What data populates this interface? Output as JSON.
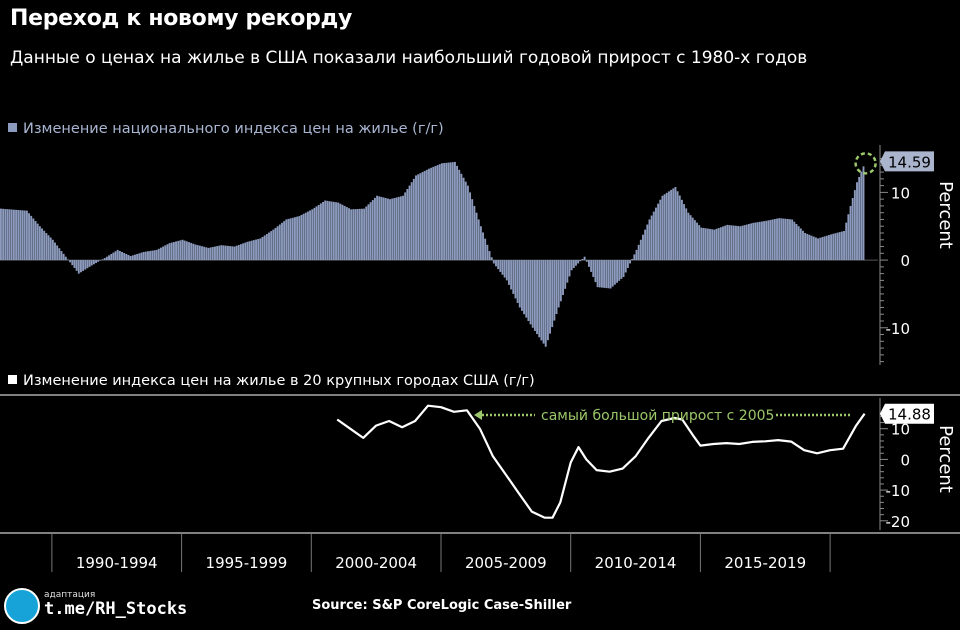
{
  "header": {
    "title": "Переход к новому рекорду",
    "subtitle": "Данные о ценах на жилье в США показали наибольший годовой прирост с 1980-х годов"
  },
  "colors": {
    "background": "#000000",
    "bars": "#8c9bbd",
    "line": "#ffffff",
    "annotation": "#9bc66a",
    "axis": "#8a8a8a"
  },
  "chart_data": [
    {
      "type": "bar",
      "legend": "Изменение национального индекса цен на жилье (г/г)",
      "ylabel": "Percent",
      "ylim": [
        -15.5,
        17
      ],
      "yticks": [
        10,
        0,
        -10
      ],
      "last_value_label": "14.59",
      "x_start": 1988.0,
      "x_end": 2021.33,
      "anchors": [
        [
          1988.0,
          7.6
        ],
        [
          1989.0,
          7.3
        ],
        [
          1989.5,
          5.0
        ],
        [
          1990.0,
          3.0
        ],
        [
          1990.5,
          0.5
        ],
        [
          1991.0,
          -2.0
        ],
        [
          1991.5,
          -0.8
        ],
        [
          1992.0,
          0.3
        ],
        [
          1992.5,
          1.5
        ],
        [
          1993.0,
          0.6
        ],
        [
          1993.5,
          1.2
        ],
        [
          1994.0,
          1.5
        ],
        [
          1994.5,
          2.5
        ],
        [
          1995.0,
          3.0
        ],
        [
          1995.5,
          2.3
        ],
        [
          1996.0,
          1.8
        ],
        [
          1996.5,
          2.2
        ],
        [
          1997.0,
          2.0
        ],
        [
          1997.5,
          2.7
        ],
        [
          1998.0,
          3.2
        ],
        [
          1998.5,
          4.5
        ],
        [
          1999.0,
          6.0
        ],
        [
          1999.5,
          6.5
        ],
        [
          2000.0,
          7.5
        ],
        [
          2000.5,
          8.8
        ],
        [
          2001.0,
          8.5
        ],
        [
          2001.5,
          7.5
        ],
        [
          2002.0,
          7.6
        ],
        [
          2002.5,
          9.5
        ],
        [
          2003.0,
          9.0
        ],
        [
          2003.5,
          9.5
        ],
        [
          2004.0,
          12.5
        ],
        [
          2004.5,
          13.5
        ],
        [
          2005.0,
          14.3
        ],
        [
          2005.5,
          14.5
        ],
        [
          2006.0,
          11.0
        ],
        [
          2006.5,
          5.0
        ],
        [
          2007.0,
          -0.5
        ],
        [
          2007.5,
          -3.0
        ],
        [
          2008.0,
          -7.0
        ],
        [
          2008.5,
          -10.0
        ],
        [
          2009.0,
          -12.8
        ],
        [
          2009.5,
          -7.0
        ],
        [
          2010.0,
          -1.5
        ],
        [
          2010.5,
          0.5
        ],
        [
          2011.0,
          -4.0
        ],
        [
          2011.5,
          -4.2
        ],
        [
          2012.0,
          -2.5
        ],
        [
          2012.5,
          1.5
        ],
        [
          2013.0,
          6.0
        ],
        [
          2013.5,
          9.5
        ],
        [
          2014.0,
          10.8
        ],
        [
          2014.5,
          7.0
        ],
        [
          2015.0,
          4.8
        ],
        [
          2015.5,
          4.5
        ],
        [
          2016.0,
          5.2
        ],
        [
          2016.5,
          5.0
        ],
        [
          2017.0,
          5.5
        ],
        [
          2017.5,
          5.8
        ],
        [
          2018.0,
          6.2
        ],
        [
          2018.5,
          6.0
        ],
        [
          2019.0,
          4.0
        ],
        [
          2019.5,
          3.2
        ],
        [
          2020.0,
          3.8
        ],
        [
          2020.5,
          4.3
        ],
        [
          2020.75,
          8.0
        ],
        [
          2021.0,
          11.5
        ],
        [
          2021.33,
          14.59
        ]
      ]
    },
    {
      "type": "line",
      "legend": "Изменение индекса цен на жилье в 20 крупных городах США (г/г)",
      "ylabel": "Percent",
      "ylim": [
        -23,
        20
      ],
      "yticks": [
        10,
        0,
        -10,
        -20
      ],
      "last_value_label": "14.88",
      "annotation": "самый большой прирост с 2005",
      "points": [
        [
          2001.0,
          13.0
        ],
        [
          2001.5,
          10.0
        ],
        [
          2002.0,
          7.0
        ],
        [
          2002.5,
          11.0
        ],
        [
          2003.0,
          12.5
        ],
        [
          2003.5,
          10.5
        ],
        [
          2004.0,
          12.5
        ],
        [
          2004.5,
          17.5
        ],
        [
          2005.0,
          17.0
        ],
        [
          2005.5,
          15.5
        ],
        [
          2006.0,
          16.0
        ],
        [
          2006.5,
          10.0
        ],
        [
          2007.0,
          1.0
        ],
        [
          2007.5,
          -5.0
        ],
        [
          2008.0,
          -11.0
        ],
        [
          2008.5,
          -17.0
        ],
        [
          2009.0,
          -19.0
        ],
        [
          2009.3,
          -19.0
        ],
        [
          2009.6,
          -14.0
        ],
        [
          2010.0,
          -1.0
        ],
        [
          2010.3,
          4.0
        ],
        [
          2010.6,
          0.0
        ],
        [
          2011.0,
          -3.5
        ],
        [
          2011.5,
          -4.0
        ],
        [
          2012.0,
          -3.0
        ],
        [
          2012.5,
          1.0
        ],
        [
          2013.0,
          7.0
        ],
        [
          2013.5,
          12.5
        ],
        [
          2014.0,
          13.5
        ],
        [
          2014.3,
          13.0
        ],
        [
          2014.7,
          8.0
        ],
        [
          2015.0,
          4.5
        ],
        [
          2015.5,
          5.0
        ],
        [
          2016.0,
          5.3
        ],
        [
          2016.5,
          5.0
        ],
        [
          2017.0,
          5.7
        ],
        [
          2017.5,
          5.9
        ],
        [
          2018.0,
          6.3
        ],
        [
          2018.5,
          5.8
        ],
        [
          2019.0,
          3.0
        ],
        [
          2019.5,
          2.0
        ],
        [
          2020.0,
          3.0
        ],
        [
          2020.5,
          3.5
        ],
        [
          2020.8,
          8.0
        ],
        [
          2021.0,
          11.0
        ],
        [
          2021.33,
          14.88
        ]
      ]
    }
  ],
  "x_axis": {
    "range": [
      1988.0,
      2022.0
    ],
    "groups": [
      {
        "label": "1990-1994",
        "from": 1990,
        "to": 1995
      },
      {
        "label": "1995-1999",
        "from": 1995,
        "to": 2000
      },
      {
        "label": "2000-2004",
        "from": 2000,
        "to": 2005
      },
      {
        "label": "2005-2009",
        "from": 2005,
        "to": 2010
      },
      {
        "label": "2010-2014",
        "from": 2010,
        "to": 2015
      },
      {
        "label": "2015-2019",
        "from": 2015,
        "to": 2020
      }
    ]
  },
  "watermark": {
    "small": "адаптация",
    "link": "t.me/RH_Stocks"
  },
  "source": "Source: S&P CoreLogic Case-Shiller"
}
